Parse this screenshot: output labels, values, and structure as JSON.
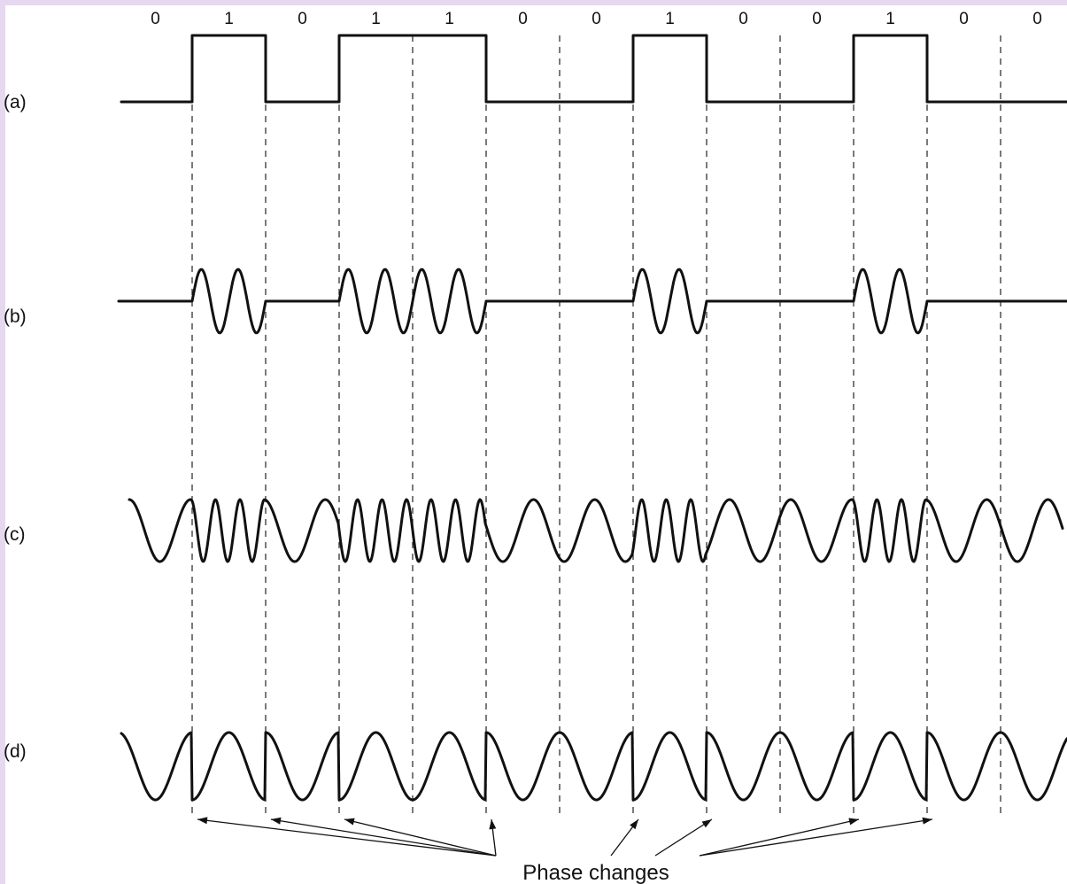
{
  "bits": [
    "0",
    "1",
    "0",
    "1",
    "1",
    "0",
    "0",
    "1",
    "0",
    "0",
    "1",
    "0",
    "0"
  ],
  "rows": [
    {
      "id": "a",
      "label": "(a)"
    },
    {
      "id": "b",
      "label": "(b)"
    },
    {
      "id": "c",
      "label": "(c)"
    },
    {
      "id": "d",
      "label": "(d)"
    }
  ],
  "caption": "Phase changes",
  "colors": {
    "background": "#e6d8ef",
    "panel": "#ffffff",
    "ink": "#111111"
  }
}
